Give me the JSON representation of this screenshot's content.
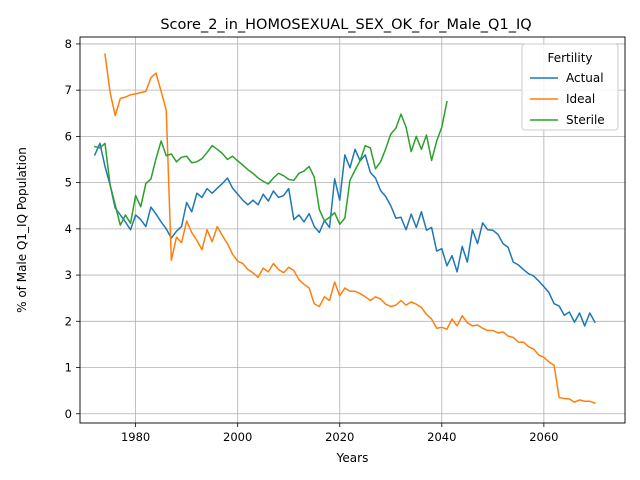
{
  "chart_data": {
    "type": "line",
    "title": "Score_2_in_HOMOSEXUAL_SEX_OK_for_Male_Q1_IQ",
    "xlabel": "Years",
    "ylabel": "% of Male Q1_IQ Population",
    "xlim": [
      1969.1,
      2075.9
    ],
    "ylim": [
      -0.2,
      8.15
    ],
    "xticks": [
      1980,
      2000,
      2020,
      2040,
      2060
    ],
    "yticks": [
      0,
      1,
      2,
      3,
      4,
      5,
      6,
      7,
      8
    ],
    "grid": true,
    "legend": {
      "title": "Fertility",
      "position": "top-right"
    },
    "series": [
      {
        "name": "Actual",
        "color": "#1f77b4",
        "points": [
          [
            1972,
            5.6
          ],
          [
            1973,
            5.85
          ],
          [
            1974,
            5.35
          ],
          [
            1975,
            4.95
          ],
          [
            1976,
            4.45
          ],
          [
            1977,
            4.3
          ],
          [
            1978,
            4.15
          ],
          [
            1979,
            3.98
          ],
          [
            1980,
            4.3
          ],
          [
            1981,
            4.2
          ],
          [
            1982,
            4.05
          ],
          [
            1983,
            4.47
          ],
          [
            1984,
            4.32
          ],
          [
            1985,
            4.15
          ],
          [
            1986,
            4.0
          ],
          [
            1987,
            3.8
          ],
          [
            1988,
            3.95
          ],
          [
            1989,
            4.05
          ],
          [
            1990,
            4.57
          ],
          [
            1991,
            4.37
          ],
          [
            1992,
            4.77
          ],
          [
            1993,
            4.68
          ],
          [
            1994,
            4.87
          ],
          [
            1995,
            4.77
          ],
          [
            1996,
            4.88
          ],
          [
            1997,
            4.98
          ],
          [
            1998,
            5.1
          ],
          [
            1999,
            4.88
          ],
          [
            2000,
            4.75
          ],
          [
            2001,
            4.62
          ],
          [
            2002,
            4.52
          ],
          [
            2003,
            4.62
          ],
          [
            2004,
            4.52
          ],
          [
            2005,
            4.75
          ],
          [
            2006,
            4.6
          ],
          [
            2007,
            4.82
          ],
          [
            2008,
            4.68
          ],
          [
            2009,
            4.72
          ],
          [
            2010,
            4.87
          ],
          [
            2011,
            4.2
          ],
          [
            2012,
            4.3
          ],
          [
            2013,
            4.15
          ],
          [
            2014,
            4.33
          ],
          [
            2015,
            4.05
          ],
          [
            2016,
            3.92
          ],
          [
            2017,
            4.18
          ],
          [
            2018,
            4.03
          ],
          [
            2019,
            5.08
          ],
          [
            2020,
            4.62
          ],
          [
            2021,
            5.6
          ],
          [
            2022,
            5.32
          ],
          [
            2023,
            5.72
          ],
          [
            2024,
            5.47
          ],
          [
            2025,
            5.6
          ],
          [
            2026,
            5.22
          ],
          [
            2027,
            5.1
          ],
          [
            2028,
            4.83
          ],
          [
            2029,
            4.7
          ],
          [
            2030,
            4.5
          ],
          [
            2031,
            4.23
          ],
          [
            2032,
            4.25
          ],
          [
            2033,
            3.98
          ],
          [
            2034,
            4.32
          ],
          [
            2035,
            4.03
          ],
          [
            2036,
            4.37
          ],
          [
            2037,
            3.97
          ],
          [
            2038,
            4.03
          ],
          [
            2039,
            3.52
          ],
          [
            2040,
            3.57
          ],
          [
            2041,
            3.2
          ],
          [
            2042,
            3.42
          ],
          [
            2043,
            3.07
          ],
          [
            2044,
            3.62
          ],
          [
            2045,
            3.28
          ],
          [
            2046,
            3.98
          ],
          [
            2047,
            3.68
          ],
          [
            2048,
            4.13
          ],
          [
            2049,
            3.98
          ],
          [
            2050,
            3.97
          ],
          [
            2051,
            3.88
          ],
          [
            2052,
            3.68
          ],
          [
            2053,
            3.6
          ],
          [
            2054,
            3.28
          ],
          [
            2055,
            3.22
          ],
          [
            2056,
            3.12
          ],
          [
            2057,
            3.03
          ],
          [
            2058,
            2.98
          ],
          [
            2059,
            2.87
          ],
          [
            2060,
            2.75
          ],
          [
            2061,
            2.62
          ],
          [
            2062,
            2.38
          ],
          [
            2063,
            2.33
          ],
          [
            2064,
            2.13
          ],
          [
            2065,
            2.2
          ],
          [
            2066,
            1.98
          ],
          [
            2067,
            2.18
          ],
          [
            2068,
            1.9
          ],
          [
            2069,
            2.18
          ],
          [
            2070,
            1.98
          ]
        ]
      },
      {
        "name": "Ideal",
        "color": "#ff7f0e",
        "points": [
          [
            1974,
            7.78
          ],
          [
            1975,
            6.95
          ],
          [
            1976,
            6.45
          ],
          [
            1977,
            6.82
          ],
          [
            1978,
            6.85
          ],
          [
            1979,
            6.9
          ],
          [
            1980,
            6.92
          ],
          [
            1981,
            6.95
          ],
          [
            1982,
            6.97
          ],
          [
            1983,
            7.27
          ],
          [
            1984,
            7.37
          ],
          [
            1985,
            6.97
          ],
          [
            1986,
            6.57
          ],
          [
            1987,
            3.32
          ],
          [
            1988,
            3.82
          ],
          [
            1989,
            3.7
          ],
          [
            1990,
            4.17
          ],
          [
            1991,
            3.92
          ],
          [
            1992,
            3.75
          ],
          [
            1993,
            3.55
          ],
          [
            1994,
            3.98
          ],
          [
            1995,
            3.72
          ],
          [
            1996,
            4.05
          ],
          [
            1997,
            3.85
          ],
          [
            1998,
            3.68
          ],
          [
            1999,
            3.45
          ],
          [
            2000,
            3.3
          ],
          [
            2001,
            3.25
          ],
          [
            2002,
            3.12
          ],
          [
            2003,
            3.05
          ],
          [
            2004,
            2.95
          ],
          [
            2005,
            3.15
          ],
          [
            2006,
            3.07
          ],
          [
            2007,
            3.25
          ],
          [
            2008,
            3.12
          ],
          [
            2009,
            3.05
          ],
          [
            2010,
            3.17
          ],
          [
            2011,
            3.1
          ],
          [
            2012,
            2.9
          ],
          [
            2013,
            2.8
          ],
          [
            2014,
            2.72
          ],
          [
            2015,
            2.38
          ],
          [
            2016,
            2.32
          ],
          [
            2017,
            2.53
          ],
          [
            2018,
            2.45
          ],
          [
            2019,
            2.85
          ],
          [
            2020,
            2.55
          ],
          [
            2021,
            2.72
          ],
          [
            2022,
            2.65
          ],
          [
            2023,
            2.65
          ],
          [
            2024,
            2.6
          ],
          [
            2025,
            2.53
          ],
          [
            2026,
            2.45
          ],
          [
            2027,
            2.53
          ],
          [
            2028,
            2.48
          ],
          [
            2029,
            2.37
          ],
          [
            2030,
            2.32
          ],
          [
            2031,
            2.35
          ],
          [
            2032,
            2.45
          ],
          [
            2033,
            2.35
          ],
          [
            2034,
            2.42
          ],
          [
            2035,
            2.37
          ],
          [
            2036,
            2.3
          ],
          [
            2037,
            2.15
          ],
          [
            2038,
            2.05
          ],
          [
            2039,
            1.85
          ],
          [
            2040,
            1.87
          ],
          [
            2041,
            1.83
          ],
          [
            2042,
            2.05
          ],
          [
            2043,
            1.9
          ],
          [
            2044,
            2.12
          ],
          [
            2045,
            1.97
          ],
          [
            2046,
            1.9
          ],
          [
            2047,
            1.92
          ],
          [
            2048,
            1.85
          ],
          [
            2049,
            1.8
          ],
          [
            2050,
            1.8
          ],
          [
            2051,
            1.75
          ],
          [
            2052,
            1.77
          ],
          [
            2053,
            1.68
          ],
          [
            2054,
            1.65
          ],
          [
            2055,
            1.55
          ],
          [
            2056,
            1.55
          ],
          [
            2057,
            1.45
          ],
          [
            2058,
            1.4
          ],
          [
            2059,
            1.27
          ],
          [
            2060,
            1.22
          ],
          [
            2061,
            1.12
          ],
          [
            2062,
            1.05
          ],
          [
            2063,
            0.35
          ],
          [
            2064,
            0.33
          ],
          [
            2065,
            0.32
          ],
          [
            2066,
            0.25
          ],
          [
            2067,
            0.3
          ],
          [
            2068,
            0.27
          ],
          [
            2069,
            0.27
          ],
          [
            2070,
            0.23
          ]
        ]
      },
      {
        "name": "Sterile",
        "color": "#2ca02c",
        "points": [
          [
            1972,
            5.78
          ],
          [
            1973,
            5.75
          ],
          [
            1974,
            5.85
          ],
          [
            1975,
            4.95
          ],
          [
            1976,
            4.52
          ],
          [
            1977,
            4.08
          ],
          [
            1978,
            4.3
          ],
          [
            1979,
            4.12
          ],
          [
            1980,
            4.72
          ],
          [
            1981,
            4.48
          ],
          [
            1982,
            4.98
          ],
          [
            1983,
            5.08
          ],
          [
            1984,
            5.52
          ],
          [
            1985,
            5.9
          ],
          [
            1986,
            5.58
          ],
          [
            1987,
            5.62
          ],
          [
            1988,
            5.45
          ],
          [
            1989,
            5.55
          ],
          [
            1990,
            5.57
          ],
          [
            1991,
            5.43
          ],
          [
            1992,
            5.45
          ],
          [
            1993,
            5.52
          ],
          [
            1994,
            5.65
          ],
          [
            1995,
            5.8
          ],
          [
            1996,
            5.72
          ],
          [
            1997,
            5.63
          ],
          [
            1998,
            5.5
          ],
          [
            1999,
            5.57
          ],
          [
            2000,
            5.47
          ],
          [
            2001,
            5.38
          ],
          [
            2002,
            5.28
          ],
          [
            2003,
            5.2
          ],
          [
            2004,
            5.1
          ],
          [
            2005,
            5.03
          ],
          [
            2006,
            4.97
          ],
          [
            2007,
            5.1
          ],
          [
            2008,
            5.2
          ],
          [
            2009,
            5.15
          ],
          [
            2010,
            5.07
          ],
          [
            2011,
            5.05
          ],
          [
            2012,
            5.2
          ],
          [
            2013,
            5.25
          ],
          [
            2014,
            5.35
          ],
          [
            2015,
            5.12
          ],
          [
            2016,
            4.42
          ],
          [
            2017,
            4.17
          ],
          [
            2018,
            4.25
          ],
          [
            2019,
            4.35
          ],
          [
            2020,
            4.1
          ],
          [
            2021,
            4.23
          ],
          [
            2022,
            5.05
          ],
          [
            2023,
            5.27
          ],
          [
            2024,
            5.48
          ],
          [
            2025,
            5.8
          ],
          [
            2026,
            5.75
          ],
          [
            2027,
            5.3
          ],
          [
            2028,
            5.45
          ],
          [
            2029,
            5.73
          ],
          [
            2030,
            6.05
          ],
          [
            2031,
            6.18
          ],
          [
            2032,
            6.48
          ],
          [
            2033,
            6.2
          ],
          [
            2034,
            5.67
          ],
          [
            2035,
            6.0
          ],
          [
            2036,
            5.72
          ],
          [
            2037,
            6.03
          ],
          [
            2038,
            5.48
          ],
          [
            2039,
            5.9
          ],
          [
            2040,
            6.2
          ],
          [
            2041,
            6.75
          ]
        ]
      }
    ]
  }
}
